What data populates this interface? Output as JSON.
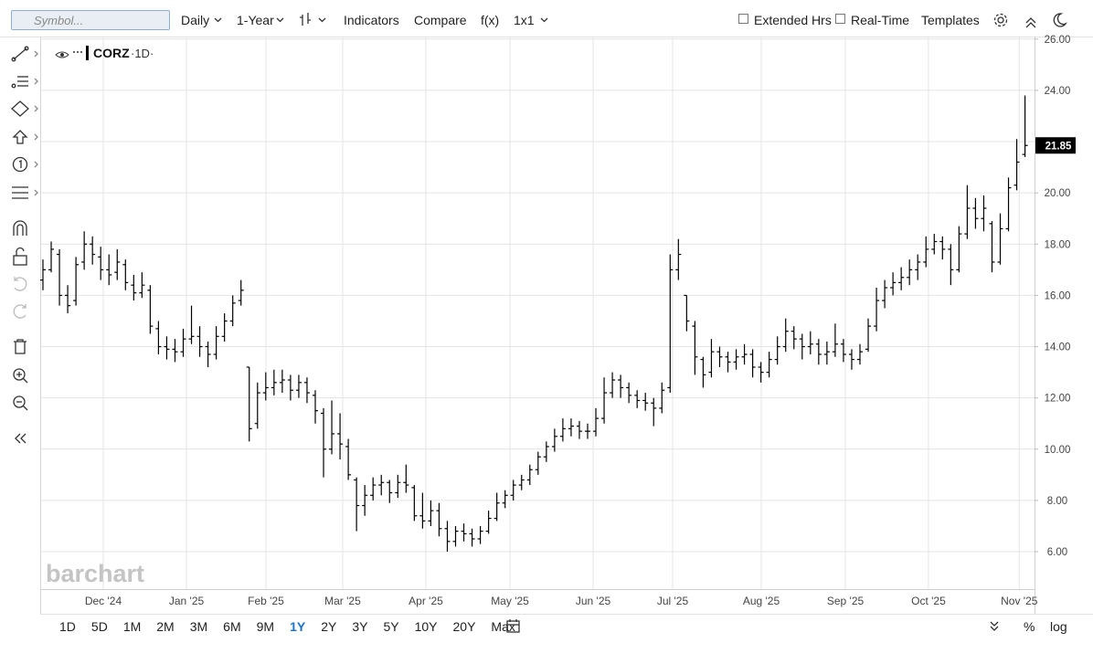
{
  "toolbar": {
    "search_placeholder": "Symbol...",
    "interval": "Daily",
    "period": "1-Year",
    "indicators": "Indicators",
    "compare": "Compare",
    "fx": "f(x)",
    "layout": "1x1",
    "extended_hours": "Extended Hrs",
    "real_time": "Real-Time",
    "templates": "Templates"
  },
  "range_bar": {
    "ranges": [
      "1D",
      "5D",
      "1M",
      "2M",
      "3M",
      "6M",
      "9M",
      "1Y",
      "2Y",
      "3Y",
      "5Y",
      "10Y",
      "20Y",
      "Max"
    ],
    "active": "1Y",
    "percent": "%",
    "log": "log"
  },
  "chart_data": {
    "type": "ohlc",
    "legend": {
      "symbol": "CORZ",
      "interval": "·1D·"
    },
    "watermark": "barchart",
    "color": "#000000",
    "grid": true,
    "last_value": 21.85,
    "xlim": [
      -0.22,
      119.93
    ],
    "xticks": [
      {
        "value": 7.31,
        "label": "Dec '24"
      },
      {
        "value": 17.39,
        "label": "Jan '25"
      },
      {
        "value": 27.02,
        "label": "Feb '25"
      },
      {
        "value": 36.32,
        "label": "Mar '25"
      },
      {
        "value": 46.4,
        "label": "Apr '25"
      },
      {
        "value": 56.59,
        "label": "May '25"
      },
      {
        "value": 66.67,
        "label": "Jun '25"
      },
      {
        "value": 76.3,
        "label": "Jul '25"
      },
      {
        "value": 87.04,
        "label": "Aug '25"
      },
      {
        "value": 97.23,
        "label": "Sep '25"
      },
      {
        "value": 107.3,
        "label": "Oct '25"
      },
      {
        "value": 118.3,
        "label": "Nov '25"
      }
    ],
    "ylim": [
      4.54,
      26.1
    ],
    "yticks": [
      {
        "value": 6,
        "label": "6.00"
      },
      {
        "value": 8,
        "label": "8.00"
      },
      {
        "value": 10,
        "label": "10.00"
      },
      {
        "value": 12,
        "label": "12.00"
      },
      {
        "value": 14,
        "label": "14.00"
      },
      {
        "value": 16,
        "label": "16.00"
      },
      {
        "value": 18,
        "label": "18.00"
      },
      {
        "value": 20,
        "label": "20.00"
      },
      {
        "value": 22,
        "label": "22.00"
      },
      {
        "value": 24,
        "label": "24.00"
      },
      {
        "value": 26,
        "label": "26.00"
      }
    ],
    "ohlc": [
      [
        16.6,
        17.4,
        16.2,
        17
      ],
      [
        17,
        18.1,
        16.9,
        17.8
      ],
      [
        17.6,
        17.8,
        15.6,
        16
      ],
      [
        16,
        16.4,
        15.3,
        15.6
      ],
      [
        15.8,
        17.5,
        15.6,
        17.2
      ],
      [
        17.3,
        18.5,
        17,
        18
      ],
      [
        18,
        18.3,
        17.2,
        17.6
      ],
      [
        17.5,
        17.9,
        16.6,
        17
      ],
      [
        17,
        17.6,
        16.4,
        16.8
      ],
      [
        16.9,
        17.8,
        16.6,
        17.3
      ],
      [
        17.2,
        17.4,
        16.2,
        16.5
      ],
      [
        16.4,
        16.8,
        15.8,
        16.1
      ],
      [
        16.1,
        16.9,
        15.9,
        16.4
      ],
      [
        16.2,
        16.4,
        14.5,
        14.8
      ],
      [
        14.7,
        15,
        13.7,
        14
      ],
      [
        14,
        14.4,
        13.5,
        13.9
      ],
      [
        13.9,
        14.3,
        13.4,
        13.8
      ],
      [
        13.8,
        14.7,
        13.6,
        14.3
      ],
      [
        14.3,
        15.6,
        14.1,
        14.4
      ],
      [
        14.4,
        14.8,
        13.6,
        14
      ],
      [
        14,
        14.2,
        13.2,
        13.7
      ],
      [
        13.7,
        14.8,
        13.5,
        14.4
      ],
      [
        14.4,
        15.3,
        14.2,
        15
      ],
      [
        15,
        16,
        14.8,
        15.7
      ],
      [
        15.8,
        16.6,
        15.6,
        16.2
      ],
      [
        13.2,
        13.2,
        10.3,
        10.8
      ],
      [
        11,
        12.6,
        10.8,
        12.2
      ],
      [
        12.2,
        13,
        11.9,
        12.4
      ],
      [
        12.4,
        13.1,
        12.1,
        12.6
      ],
      [
        12.6,
        13.1,
        12.2,
        12.7
      ],
      [
        12.7,
        12.9,
        11.9,
        12.3
      ],
      [
        12.3,
        12.9,
        12,
        12.6
      ],
      [
        12.6,
        12.8,
        11.8,
        12.2
      ],
      [
        12.1,
        12.3,
        11,
        11.5
      ],
      [
        11.4,
        11.6,
        8.9,
        10
      ],
      [
        10,
        11.9,
        9.8,
        10.6
      ],
      [
        10.6,
        11.4,
        9.6,
        10.2
      ],
      [
        10.1,
        10.4,
        8.8,
        9
      ],
      [
        8.8,
        8.9,
        6.8,
        7.8
      ],
      [
        7.8,
        8.6,
        7.4,
        8.2
      ],
      [
        8.2,
        8.9,
        8,
        8.6
      ],
      [
        8.6,
        9,
        8.2,
        8.7
      ],
      [
        8.7,
        8.8,
        7.9,
        8.3
      ],
      [
        8.3,
        9,
        8.1,
        8.7
      ],
      [
        8.7,
        9.4,
        8.3,
        8.6
      ],
      [
        8.5,
        8.6,
        7.2,
        7.4
      ],
      [
        7.4,
        8.3,
        6.9,
        7.2
      ],
      [
        7.2,
        8,
        7,
        7.6
      ],
      [
        7.6,
        7.9,
        6.6,
        6.9
      ],
      [
        6.9,
        7.2,
        6,
        6.4
      ],
      [
        6.4,
        7,
        6.2,
        6.8
      ],
      [
        6.8,
        7.1,
        6.4,
        6.7
      ],
      [
        6.7,
        6.9,
        6.2,
        6.5
      ],
      [
        6.5,
        7,
        6.3,
        6.8
      ],
      [
        6.8,
        7.6,
        6.7,
        7.3
      ],
      [
        7.3,
        8.3,
        7.2,
        7.9
      ],
      [
        7.9,
        8.4,
        7.7,
        8.2
      ],
      [
        8.2,
        8.8,
        8,
        8.6
      ],
      [
        8.6,
        9,
        8.4,
        8.8
      ],
      [
        8.8,
        9.4,
        8.6,
        9.2
      ],
      [
        9.2,
        9.9,
        9,
        9.7
      ],
      [
        9.7,
        10.3,
        9.5,
        10.1
      ],
      [
        10.1,
        10.8,
        9.9,
        10.5
      ],
      [
        10.5,
        11.2,
        10.3,
        10.8
      ],
      [
        10.8,
        11.2,
        10.5,
        10.9
      ],
      [
        10.9,
        11.1,
        10.4,
        10.7
      ],
      [
        10.7,
        11,
        10.4,
        10.7
      ],
      [
        10.7,
        11.6,
        10.5,
        11.2
      ],
      [
        11.2,
        12.8,
        11,
        12.2
      ],
      [
        12.2,
        13,
        12,
        12.7
      ],
      [
        12.7,
        12.9,
        12,
        12.4
      ],
      [
        12.4,
        12.6,
        11.8,
        12.1
      ],
      [
        12.1,
        12.3,
        11.6,
        11.9
      ],
      [
        11.9,
        12.2,
        11.5,
        11.8
      ],
      [
        11.8,
        12,
        10.9,
        11.6
      ],
      [
        11.6,
        12.6,
        11.4,
        12.3
      ],
      [
        12.4,
        17.6,
        12.2,
        17
      ],
      [
        17,
        18.2,
        16.6,
        17.6
      ],
      [
        16,
        16,
        14.6,
        15
      ],
      [
        14.8,
        15,
        12.9,
        13.6
      ],
      [
        13.5,
        13.6,
        12.4,
        12.9
      ],
      [
        13,
        14.3,
        12.8,
        13.8
      ],
      [
        13.8,
        14,
        13.2,
        13.6
      ],
      [
        13.6,
        13.8,
        13,
        13.4
      ],
      [
        13.4,
        13.9,
        13.1,
        13.6
      ],
      [
        13.6,
        14.1,
        13.3,
        13.7
      ],
      [
        13.7,
        13.9,
        12.8,
        13.2
      ],
      [
        13.2,
        13.4,
        12.6,
        13
      ],
      [
        13,
        13.8,
        12.8,
        13.5
      ],
      [
        13.5,
        14.4,
        13.3,
        14
      ],
      [
        14,
        15.1,
        13.8,
        14.6
      ],
      [
        14.6,
        14.8,
        13.9,
        14.3
      ],
      [
        14.3,
        14.5,
        13.5,
        14
      ],
      [
        14,
        14.6,
        13.7,
        14.1
      ],
      [
        14.1,
        14.3,
        13.3,
        13.7
      ],
      [
        13.7,
        14.2,
        13.3,
        13.8
      ],
      [
        13.8,
        14.9,
        13.6,
        14.1
      ],
      [
        14.1,
        14.3,
        13.4,
        13.7
      ],
      [
        13.7,
        13.9,
        13.1,
        13.5
      ],
      [
        13.5,
        14.1,
        13.3,
        13.8
      ],
      [
        13.9,
        15.1,
        13.8,
        14.8
      ],
      [
        14.8,
        16.3,
        14.6,
        15.8
      ],
      [
        15.8,
        16.6,
        15.5,
        16.3
      ],
      [
        16.3,
        16.9,
        16,
        16.5
      ],
      [
        16.5,
        17.1,
        16.2,
        16.7
      ],
      [
        16.7,
        17.4,
        16.4,
        17
      ],
      [
        17,
        17.6,
        16.6,
        17.3
      ],
      [
        17.3,
        18.3,
        17.1,
        17.8
      ],
      [
        17.8,
        18.4,
        17.6,
        18.1
      ],
      [
        18.1,
        18.3,
        17.4,
        17.8
      ],
      [
        17.8,
        18,
        16.4,
        17
      ],
      [
        17,
        18.7,
        16.9,
        18.4
      ],
      [
        18.4,
        20.3,
        18.2,
        19.4
      ],
      [
        19.4,
        19.8,
        18.6,
        19
      ],
      [
        19,
        19.9,
        18.5,
        19.4
      ],
      [
        18.8,
        18.9,
        16.9,
        17.3
      ],
      [
        17.3,
        19.2,
        17.2,
        18.6
      ],
      [
        18.6,
        20.6,
        18.5,
        20.2
      ],
      [
        20.3,
        22.1,
        20.1,
        21.2
      ],
      [
        21.5,
        23.8,
        21.4,
        21.85
      ]
    ]
  }
}
